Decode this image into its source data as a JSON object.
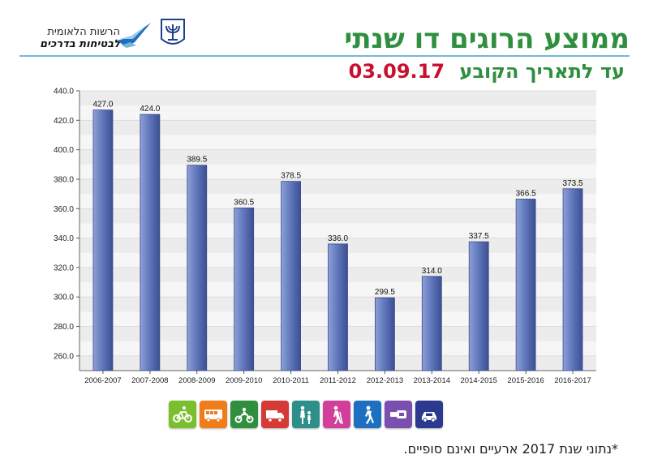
{
  "header": {
    "logo_line1": "הרשות הלאומית",
    "logo_line2": "לבטיחות בדרכים",
    "title": "ממוצע הרוגים דו שנתי",
    "subtitle_prefix": "עד לתאריך הקובע",
    "subtitle_date": "03.09.17"
  },
  "colors": {
    "title": "#2f8f3f",
    "date": "#c8102e",
    "bar": "#5f74b8",
    "rule": "#76b7d9"
  },
  "chart_data": {
    "type": "bar",
    "categories": [
      "2006-2007",
      "2007-2008",
      "2008-2009",
      "2009-2010",
      "2010-2011",
      "2011-2012",
      "2012-2013",
      "2013-2014",
      "2014-2015",
      "2015-2016",
      "2016-2017"
    ],
    "values": [
      427.0,
      424.0,
      389.5,
      360.5,
      378.5,
      336.0,
      299.5,
      314.0,
      337.5,
      366.5,
      373.5
    ],
    "value_labels": [
      "427.0",
      "424.0",
      "389.5",
      "360.5",
      "378.5",
      "336.0",
      "299.5",
      "314.0",
      "337.5",
      "366.5",
      "373.5"
    ],
    "yticks": [
      "260.0",
      "280.0",
      "300.0",
      "320.0",
      "340.0",
      "360.0",
      "380.0",
      "400.0",
      "420.0",
      "440.0"
    ],
    "ylim": [
      250,
      440
    ],
    "title": "",
    "xlabel": "",
    "ylabel": "",
    "grid": true,
    "legend": "none"
  },
  "icons": [
    {
      "name": "car-icon",
      "color": "#2b3a8f"
    },
    {
      "name": "seatbelt-icon",
      "color": "#7a4fb0"
    },
    {
      "name": "pedestrian-icon",
      "color": "#1f6fc0"
    },
    {
      "name": "elderly-pedestrian-icon",
      "color": "#d23f9a"
    },
    {
      "name": "child-pedestrian-icon",
      "color": "#2e8f8a"
    },
    {
      "name": "truck-icon",
      "color": "#d53a36"
    },
    {
      "name": "motorcycle-icon",
      "color": "#2f8f3f"
    },
    {
      "name": "bus-icon",
      "color": "#ef7d1a"
    },
    {
      "name": "bicycle-icon",
      "color": "#7bbf2e"
    }
  ],
  "footnote": {
    "mark": "*",
    "text": "נתוני שנת 2017 ארעיים ואינם סופיים."
  }
}
